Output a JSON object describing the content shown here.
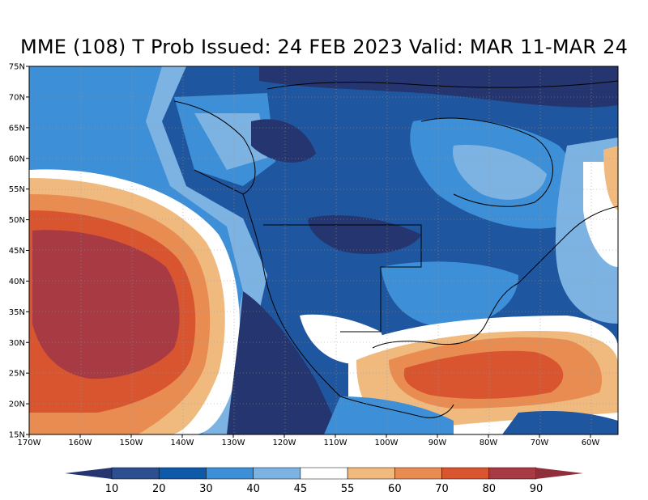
{
  "map": {
    "title": "MME (108) T Prob Issued: 24 FEB 2023 Valid: MAR 11-MAR 24",
    "lat_labels": [
      "75N",
      "70N",
      "65N",
      "60N",
      "55N",
      "50N",
      "45N",
      "40N",
      "35N",
      "30N",
      "25N",
      "20N",
      "15N"
    ],
    "lon_labels": [
      "170W",
      "160W",
      "150W",
      "140W",
      "130W",
      "120W",
      "110W",
      "100W",
      "90W",
      "80W",
      "70W",
      "60W"
    ],
    "colorbar": {
      "labels": [
        "10",
        "20",
        "30",
        "40",
        "45",
        "55",
        "60",
        "70",
        "80",
        "90"
      ],
      "colors": [
        "#253570",
        "#2c4f8f",
        "#0f5aa8",
        "#3d8fd7",
        "#7cb3e3",
        "#ffffff",
        "#f0b97d",
        "#e98c52",
        "#d9552f",
        "#a83a44",
        "#8f2f3b"
      ]
    },
    "colors": {
      "deep_blue": "#253570",
      "dark_blue": "#1f56a0",
      "blue": "#3d8fd7",
      "light_blue": "#7cb3e3",
      "white": "#ffffff",
      "light_orange": "#f0b97d",
      "orange": "#e98c52",
      "red_orange": "#d9552f",
      "dark_red": "#a83a44"
    }
  }
}
